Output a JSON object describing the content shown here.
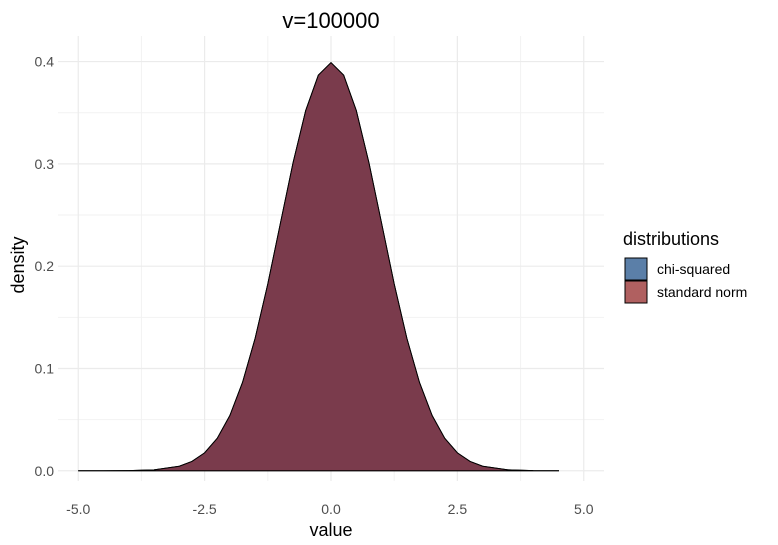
{
  "chart_data": {
    "type": "area",
    "title": "v=100000",
    "xlabel": "value",
    "ylabel": "density",
    "xlim": [
      -5.4,
      5.4
    ],
    "ylim": [
      -0.01,
      0.425
    ],
    "x_ticks": [
      -5.0,
      -2.5,
      0.0,
      2.5,
      5.0
    ],
    "x_tick_labels": [
      "-5.0",
      "-2.5",
      "0.0",
      "2.5",
      "5.0"
    ],
    "y_ticks": [
      0.0,
      0.1,
      0.2,
      0.3,
      0.4
    ],
    "y_tick_labels": [
      "0.0",
      "0.1",
      "0.2",
      "0.3",
      "0.4"
    ],
    "grid": true,
    "legend": {
      "title": "distributions",
      "position": "right",
      "entries": [
        {
          "label": "chi-squared",
          "color": "#5b7fa8"
        },
        {
          "label": "standard norm",
          "color": "#b06060"
        }
      ]
    },
    "overlap_color": "#7a3a4a",
    "series": [
      {
        "name": "chi-squared",
        "x": [
          -5.0,
          -4.5,
          -4.0,
          -3.5,
          -3.0,
          -2.75,
          -2.5,
          -2.25,
          -2.0,
          -1.75,
          -1.5,
          -1.25,
          -1.0,
          -0.75,
          -0.5,
          -0.25,
          0.0,
          0.25,
          0.5,
          0.75,
          1.0,
          1.25,
          1.5,
          1.75,
          2.0,
          2.25,
          2.5,
          2.75,
          3.0,
          3.5,
          4.0,
          4.5
        ],
        "values": [
          0.0,
          0.0,
          0.0001,
          0.0009,
          0.0044,
          0.0091,
          0.0175,
          0.0317,
          0.054,
          0.0863,
          0.1295,
          0.1826,
          0.242,
          0.3011,
          0.3521,
          0.3867,
          0.3989,
          0.3867,
          0.3521,
          0.3011,
          0.242,
          0.1826,
          0.1295,
          0.0863,
          0.054,
          0.0317,
          0.0175,
          0.0091,
          0.0044,
          0.0009,
          0.0001,
          0.0
        ]
      },
      {
        "name": "standard norm",
        "x": [
          -5.0,
          -4.5,
          -4.0,
          -3.5,
          -3.0,
          -2.75,
          -2.5,
          -2.25,
          -2.0,
          -1.75,
          -1.5,
          -1.25,
          -1.0,
          -0.75,
          -0.5,
          -0.25,
          0.0,
          0.25,
          0.5,
          0.75,
          1.0,
          1.25,
          1.5,
          1.75,
          2.0,
          2.25,
          2.5,
          2.75,
          3.0,
          3.5,
          4.0,
          4.5
        ],
        "values": [
          0.0,
          0.0,
          0.0001,
          0.0009,
          0.0044,
          0.0091,
          0.0175,
          0.0317,
          0.054,
          0.0863,
          0.1295,
          0.1826,
          0.242,
          0.3011,
          0.3521,
          0.3867,
          0.3989,
          0.3867,
          0.3521,
          0.3011,
          0.242,
          0.1826,
          0.1295,
          0.0863,
          0.054,
          0.0317,
          0.0175,
          0.0091,
          0.0044,
          0.0009,
          0.0001,
          0.0
        ]
      }
    ]
  }
}
